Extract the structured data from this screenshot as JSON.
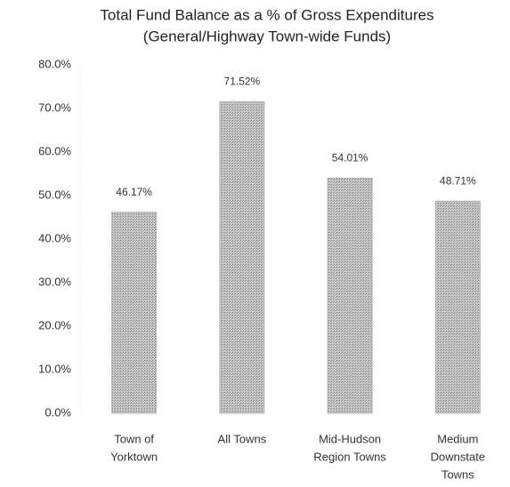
{
  "chart_data": {
    "type": "bar",
    "title": [
      "Total Fund Balance as a % of Gross Expenditures",
      "(General/Highway Town-wide Funds)"
    ],
    "categories": [
      [
        "Town of",
        "Yorktown"
      ],
      [
        "All Towns"
      ],
      [
        "Mid-Hudson",
        "Region Towns"
      ],
      [
        "Medium",
        "Downstate",
        "Towns"
      ]
    ],
    "values": [
      46.17,
      71.52,
      54.01,
      48.71
    ],
    "value_labels": [
      "46.17%",
      "71.52%",
      "54.01%",
      "48.71%"
    ],
    "color": "#b3b3b3",
    "ylim": [
      0,
      80
    ],
    "yticks": [
      {
        "value": 0,
        "label": "0.0%"
      },
      {
        "value": 10,
        "label": "10.0%"
      },
      {
        "value": 20,
        "label": "20.0%"
      },
      {
        "value": 30,
        "label": "30.0%"
      },
      {
        "value": 40,
        "label": "40.0%"
      },
      {
        "value": 50,
        "label": "50.0%"
      },
      {
        "value": 60,
        "label": "60.0%"
      },
      {
        "value": 70,
        "label": "70.0%"
      },
      {
        "value": 80,
        "label": "80.0%"
      }
    ],
    "grid": false
  }
}
